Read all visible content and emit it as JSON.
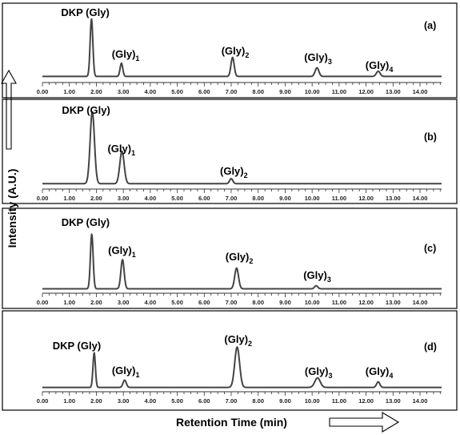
{
  "chart_data": {
    "type": "line",
    "xlabel": "Retention Time (min)",
    "ylabel": "Intensity (A.U.)",
    "xlim": [
      0,
      14.8
    ],
    "xticks": [
      "0.00",
      "1.00",
      "2.00",
      "3.00",
      "4.00",
      "5.00",
      "6.00",
      "7.00",
      "8.00",
      "9.00",
      "10.00",
      "11.00",
      "12.00",
      "13.00",
      "14.00"
    ],
    "grid": false,
    "panels": [
      {
        "label": "(a)",
        "baseline": 0.05,
        "peaks": [
          {
            "name": "DKP (Gly)",
            "x": 1.82,
            "height": 1.0,
            "width": 0.05
          },
          {
            "name": "(Gly)1",
            "base": "(Gly)",
            "sub": "1",
            "x": 2.93,
            "height": 0.23,
            "width": 0.05
          },
          {
            "name": "(Gly)2",
            "base": "(Gly)",
            "sub": "2",
            "x": 7.05,
            "height": 0.33,
            "width": 0.06
          },
          {
            "name": "(Gly)3",
            "base": "(Gly)",
            "sub": "3",
            "x": 10.18,
            "height": 0.15,
            "width": 0.07
          },
          {
            "name": "(Gly)4",
            "base": "(Gly)",
            "sub": "4",
            "x": 12.45,
            "height": 0.09,
            "width": 0.07
          }
        ]
      },
      {
        "label": "(b)",
        "baseline": 0.03,
        "peaks": [
          {
            "name": "DKP (Gly)",
            "x": 1.85,
            "height": 1.0,
            "width": 0.08
          },
          {
            "name": "(Gly)1",
            "base": "(Gly)",
            "sub": "1",
            "x": 2.95,
            "height": 0.45,
            "width": 0.08
          },
          {
            "name": "(Gly)2",
            "base": "(Gly)",
            "sub": "2",
            "x": 7.0,
            "height": 0.07,
            "width": 0.06
          }
        ]
      },
      {
        "label": "(c)",
        "baseline": 0.02,
        "peaks": [
          {
            "name": "DKP (Gly)",
            "x": 1.83,
            "height": 0.9,
            "width": 0.05
          },
          {
            "name": "(Gly)1",
            "base": "(Gly)",
            "sub": "1",
            "x": 2.97,
            "height": 0.48,
            "width": 0.06
          },
          {
            "name": "(Gly)2",
            "base": "(Gly)",
            "sub": "2",
            "x": 7.2,
            "height": 0.34,
            "width": 0.07
          },
          {
            "name": "(Gly)3",
            "base": "(Gly)",
            "sub": "3",
            "x": 10.15,
            "height": 0.05,
            "width": 0.06
          }
        ]
      },
      {
        "label": "(d)",
        "baseline": 0.02,
        "peaks": [
          {
            "name": "DKP (Gly)",
            "x": 1.92,
            "height": 0.62,
            "width": 0.045
          },
          {
            "name": "(Gly)1",
            "base": "(Gly)",
            "sub": "1",
            "x": 3.05,
            "height": 0.13,
            "width": 0.06
          },
          {
            "name": "(Gly)2",
            "base": "(Gly)",
            "sub": "2",
            "x": 7.22,
            "height": 0.72,
            "width": 0.09
          },
          {
            "name": "(Gly)3",
            "base": "(Gly)",
            "sub": "3",
            "x": 10.2,
            "height": 0.17,
            "width": 0.1
          },
          {
            "name": "(Gly)4",
            "base": "(Gly)",
            "sub": "4",
            "x": 12.45,
            "height": 0.1,
            "width": 0.06
          }
        ]
      }
    ]
  }
}
